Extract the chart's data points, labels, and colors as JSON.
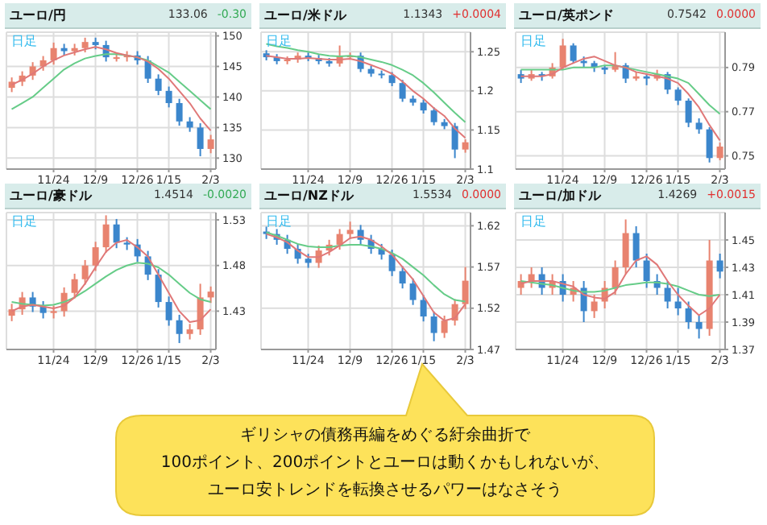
{
  "chart_data": [
    {
      "type": "candlestick",
      "title": "ユーロ/円",
      "annotations": [
        "133.06",
        "-0.30",
        "日足"
      ],
      "categories": [
        null,
        null,
        null,
        null,
        "11/24",
        null,
        null,
        null,
        "12/9",
        null,
        null,
        null,
        "12/26",
        null,
        null,
        "1/15",
        null,
        null,
        null,
        "2/3"
      ],
      "ylim": [
        128.2,
        150.6
      ],
      "yticks": [
        130,
        135,
        140,
        145,
        150
      ],
      "grid": true,
      "ohlc": [
        [
          141.5,
          143.2,
          140.8,
          142.5
        ],
        [
          142.5,
          144.2,
          141.8,
          143.5
        ],
        [
          143.5,
          145.7,
          142.8,
          145
        ],
        [
          145,
          146.7,
          144.3,
          146
        ],
        [
          146,
          148.9,
          145.3,
          148
        ],
        [
          148,
          148.7,
          146.8,
          147.5
        ],
        [
          147.5,
          148.7,
          146.8,
          148
        ],
        [
          148,
          149.7,
          147.3,
          149
        ],
        [
          149,
          149.7,
          147.8,
          148.5
        ],
        [
          148.5,
          149.2,
          145.8,
          146.5
        ],
        [
          146.5,
          147.2,
          145.8,
          146.5
        ],
        [
          146.5,
          147.5,
          145.8,
          146.8
        ],
        [
          146.8,
          147.5,
          145.3,
          146
        ],
        [
          146,
          146.7,
          142.3,
          143
        ],
        [
          143,
          143.7,
          140.3,
          141
        ],
        [
          141,
          141.7,
          138.3,
          139
        ],
        [
          139,
          139.7,
          135.3,
          136
        ],
        [
          136,
          136.7,
          134.3,
          135
        ],
        [
          135,
          135.7,
          130.3,
          131.5
        ],
        [
          131.5,
          133.8,
          130.8,
          133.06
        ]
      ],
      "series": [
        {
          "type": "line",
          "color": "#66cc88",
          "values": [
            138,
            139,
            140,
            141.5,
            143,
            144.5,
            145.5,
            146.3,
            146.7,
            147,
            147,
            146.8,
            146.5,
            146,
            145,
            144,
            142.5,
            141,
            139.5,
            138
          ]
        },
        {
          "type": "line",
          "color": "#e07878",
          "values": [
            142,
            142.8,
            143.8,
            145,
            146,
            146.8,
            147.3,
            147.8,
            148.2,
            147.8,
            147.2,
            146.8,
            146.5,
            145.8,
            144.6,
            143,
            141,
            139,
            136.5,
            134.5
          ]
        }
      ]
    },
    {
      "type": "candlestick",
      "title": "ユーロ/米ドル",
      "annotations": [
        "1.1343",
        "+0.0004",
        "日足"
      ],
      "categories": [
        null,
        null,
        null,
        null,
        "11/24",
        null,
        null,
        null,
        "12/9",
        null,
        null,
        null,
        "12/26",
        null,
        null,
        "1/15",
        null,
        null,
        null,
        "2/3"
      ],
      "ylim": [
        1.1,
        1.275
      ],
      "yticks": [
        1.1,
        1.15,
        1.2,
        1.25
      ],
      "grid": true,
      "ohlc": [
        [
          1.248,
          1.252,
          1.239,
          1.243
        ],
        [
          1.243,
          1.247,
          1.234,
          1.238
        ],
        [
          1.238,
          1.244,
          1.234,
          1.24
        ],
        [
          1.24,
          1.249,
          1.236,
          1.245
        ],
        [
          1.245,
          1.249,
          1.238,
          1.242
        ],
        [
          1.242,
          1.246,
          1.234,
          1.238
        ],
        [
          1.238,
          1.242,
          1.231,
          1.235
        ],
        [
          1.235,
          1.258,
          1.231,
          1.245
        ],
        [
          1.245,
          1.249,
          1.241,
          1.245
        ],
        [
          1.245,
          1.249,
          1.224,
          1.228
        ],
        [
          1.228,
          1.232,
          1.218,
          1.222
        ],
        [
          1.222,
          1.226,
          1.216,
          1.22
        ],
        [
          1.22,
          1.224,
          1.206,
          1.21
        ],
        [
          1.21,
          1.214,
          1.186,
          1.19
        ],
        [
          1.19,
          1.194,
          1.181,
          1.185
        ],
        [
          1.185,
          1.189,
          1.171,
          1.175
        ],
        [
          1.175,
          1.179,
          1.156,
          1.16
        ],
        [
          1.16,
          1.164,
          1.151,
          1.155
        ],
        [
          1.155,
          1.159,
          1.114,
          1.125
        ],
        [
          1.125,
          1.138,
          1.121,
          1.1343
        ]
      ],
      "series": [
        {
          "type": "line",
          "color": "#66cc88",
          "values": [
            1.26,
            1.257,
            1.255,
            1.252,
            1.25,
            1.247,
            1.245,
            1.244,
            1.245,
            1.243,
            1.24,
            1.237,
            1.233,
            1.227,
            1.22,
            1.21,
            1.198,
            1.185,
            1.172,
            1.16
          ]
        },
        {
          "type": "line",
          "color": "#e07878",
          "values": [
            1.245,
            1.243,
            1.241,
            1.241,
            1.242,
            1.241,
            1.24,
            1.24,
            1.241,
            1.238,
            1.233,
            1.228,
            1.222,
            1.212,
            1.2,
            1.19,
            1.178,
            1.168,
            1.152,
            1.14
          ]
        }
      ]
    },
    {
      "type": "candlestick",
      "title": "ユーロ/英ポンド",
      "annotations": [
        "0.7542",
        "0.0000",
        "日足"
      ],
      "categories": [
        null,
        null,
        null,
        null,
        "11/24",
        null,
        null,
        null,
        "12/9",
        null,
        null,
        null,
        "12/26",
        null,
        null,
        "1/15",
        null,
        null,
        null,
        "2/3"
      ],
      "ylim": [
        0.744,
        0.806
      ],
      "yticks": [
        0.75,
        0.77,
        0.79
      ],
      "grid": true,
      "ohlc": [
        [
          0.787,
          0.789,
          0.783,
          0.785
        ],
        [
          0.785,
          0.789,
          0.784,
          0.787
        ],
        [
          0.787,
          0.788,
          0.784,
          0.786
        ],
        [
          0.786,
          0.792,
          0.785,
          0.79
        ],
        [
          0.79,
          0.803,
          0.789,
          0.8
        ],
        [
          0.8,
          0.801,
          0.792,
          0.793
        ],
        [
          0.793,
          0.795,
          0.79,
          0.792
        ],
        [
          0.792,
          0.793,
          0.788,
          0.79
        ],
        [
          0.79,
          0.791,
          0.787,
          0.789
        ],
        [
          0.789,
          0.797,
          0.788,
          0.791
        ],
        [
          0.791,
          0.792,
          0.783,
          0.785
        ],
        [
          0.785,
          0.788,
          0.784,
          0.786
        ],
        [
          0.786,
          0.787,
          0.782,
          0.785
        ],
        [
          0.785,
          0.789,
          0.784,
          0.787
        ],
        [
          0.787,
          0.788,
          0.778,
          0.78
        ],
        [
          0.78,
          0.781,
          0.773,
          0.775
        ],
        [
          0.775,
          0.776,
          0.763,
          0.765
        ],
        [
          0.765,
          0.767,
          0.76,
          0.762
        ],
        [
          0.762,
          0.763,
          0.747,
          0.749
        ],
        [
          0.749,
          0.756,
          0.748,
          0.7542
        ]
      ],
      "series": [
        {
          "type": "line",
          "color": "#66cc88",
          "values": [
            0.789,
            0.789,
            0.789,
            0.789,
            0.789,
            0.79,
            0.79,
            0.79,
            0.791,
            0.791,
            0.79,
            0.789,
            0.788,
            0.787,
            0.786,
            0.785,
            0.783,
            0.778,
            0.773,
            0.769
          ]
        },
        {
          "type": "line",
          "color": "#e07878",
          "values": [
            0.786,
            0.786,
            0.786,
            0.787,
            0.79,
            0.792,
            0.794,
            0.795,
            0.793,
            0.791,
            0.79,
            0.788,
            0.787,
            0.786,
            0.785,
            0.783,
            0.778,
            0.772,
            0.764,
            0.757
          ]
        }
      ]
    },
    {
      "type": "candlestick",
      "title": "ユーロ/豪ドル",
      "annotations": [
        "1.4514",
        "-0.0020",
        "日足"
      ],
      "categories": [
        null,
        null,
        null,
        null,
        "11/24",
        null,
        null,
        null,
        "12/9",
        null,
        null,
        null,
        "12/26",
        null,
        null,
        "1/15",
        null,
        null,
        null,
        "2/3"
      ],
      "ylim": [
        1.388,
        1.538
      ],
      "yticks": [
        1.43,
        1.48,
        1.53
      ],
      "grid": true,
      "ohlc": [
        [
          1.425,
          1.438,
          1.419,
          1.432
        ],
        [
          1.432,
          1.451,
          1.426,
          1.445
        ],
        [
          1.445,
          1.451,
          1.429,
          1.435
        ],
        [
          1.435,
          1.441,
          1.422,
          1.428
        ],
        [
          1.428,
          1.436,
          1.422,
          1.43
        ],
        [
          1.43,
          1.456,
          1.424,
          1.45
        ],
        [
          1.45,
          1.471,
          1.444,
          1.465
        ],
        [
          1.465,
          1.486,
          1.459,
          1.48
        ],
        [
          1.48,
          1.506,
          1.474,
          1.5
        ],
        [
          1.5,
          1.535,
          1.494,
          1.525
        ],
        [
          1.525,
          1.531,
          1.499,
          1.505
        ],
        [
          1.505,
          1.511,
          1.497,
          1.503
        ],
        [
          1.503,
          1.509,
          1.484,
          1.49
        ],
        [
          1.49,
          1.496,
          1.464,
          1.47
        ],
        [
          1.47,
          1.476,
          1.434,
          1.44
        ],
        [
          1.44,
          1.446,
          1.414,
          1.42
        ],
        [
          1.42,
          1.426,
          1.395,
          1.405
        ],
        [
          1.405,
          1.416,
          1.399,
          1.41
        ],
        [
          1.41,
          1.46,
          1.404,
          1.445
        ],
        [
          1.445,
          1.457,
          1.439,
          1.4514
        ]
      ],
      "series": [
        {
          "type": "line",
          "color": "#66cc88",
          "values": [
            1.44,
            1.438,
            1.437,
            1.436,
            1.437,
            1.44,
            1.445,
            1.452,
            1.46,
            1.468,
            1.475,
            1.48,
            1.483,
            1.482,
            1.478,
            1.47,
            1.46,
            1.45,
            1.443,
            1.44
          ]
        },
        {
          "type": "line",
          "color": "#e07878",
          "values": [
            1.43,
            1.435,
            1.437,
            1.435,
            1.433,
            1.436,
            1.445,
            1.46,
            1.478,
            1.495,
            1.505,
            1.508,
            1.5,
            1.49,
            1.47,
            1.45,
            1.43,
            1.418,
            1.42,
            1.432
          ]
        }
      ]
    },
    {
      "type": "candlestick",
      "title": "ユーロ/NZドル",
      "annotations": [
        "1.5534",
        "0.0000",
        "日足"
      ],
      "categories": [
        null,
        null,
        null,
        null,
        "11/24",
        null,
        null,
        null,
        "12/9",
        null,
        null,
        null,
        "12/26",
        null,
        null,
        "1/15",
        null,
        null,
        null,
        "2/3"
      ],
      "ylim": [
        1.47,
        1.636
      ],
      "yticks": [
        1.47,
        1.52,
        1.57,
        1.62
      ],
      "grid": true,
      "ohlc": [
        [
          1.613,
          1.619,
          1.604,
          1.61
        ],
        [
          1.61,
          1.616,
          1.597,
          1.603
        ],
        [
          1.603,
          1.609,
          1.586,
          1.592
        ],
        [
          1.592,
          1.598,
          1.574,
          1.58
        ],
        [
          1.58,
          1.586,
          1.569,
          1.575
        ],
        [
          1.575,
          1.596,
          1.569,
          1.59
        ],
        [
          1.59,
          1.603,
          1.584,
          1.597
        ],
        [
          1.597,
          1.616,
          1.591,
          1.61
        ],
        [
          1.61,
          1.625,
          1.604,
          1.615
        ],
        [
          1.615,
          1.621,
          1.597,
          1.603
        ],
        [
          1.603,
          1.609,
          1.586,
          1.592
        ],
        [
          1.592,
          1.598,
          1.579,
          1.585
        ],
        [
          1.585,
          1.591,
          1.559,
          1.565
        ],
        [
          1.565,
          1.571,
          1.544,
          1.55
        ],
        [
          1.55,
          1.556,
          1.524,
          1.53
        ],
        [
          1.53,
          1.536,
          1.504,
          1.51
        ],
        [
          1.51,
          1.516,
          1.48,
          1.49
        ],
        [
          1.49,
          1.511,
          1.484,
          1.505
        ],
        [
          1.505,
          1.531,
          1.499,
          1.525
        ],
        [
          1.525,
          1.57,
          1.519,
          1.5534
        ]
      ],
      "series": [
        {
          "type": "line",
          "color": "#66cc88",
          "values": [
            1.612,
            1.608,
            1.603,
            1.598,
            1.595,
            1.594,
            1.594,
            1.596,
            1.597,
            1.597,
            1.595,
            1.592,
            1.587,
            1.58,
            1.57,
            1.56,
            1.548,
            1.537,
            1.53,
            1.528
          ]
        },
        {
          "type": "line",
          "color": "#e07878",
          "values": [
            1.61,
            1.606,
            1.6,
            1.59,
            1.582,
            1.582,
            1.588,
            1.596,
            1.605,
            1.607,
            1.603,
            1.595,
            1.585,
            1.57,
            1.555,
            1.535,
            1.515,
            1.505,
            1.508,
            1.525
          ]
        }
      ]
    },
    {
      "type": "candlestick",
      "title": "ユーロ/加ドル",
      "annotations": [
        "1.4269",
        "+0.0015",
        "日足"
      ],
      "categories": [
        null,
        null,
        null,
        null,
        "11/24",
        null,
        null,
        null,
        "12/9",
        null,
        null,
        null,
        "12/26",
        null,
        null,
        "1/15",
        null,
        null,
        null,
        "2/3"
      ],
      "ylim": [
        1.37,
        1.47
      ],
      "yticks": [
        1.37,
        1.39,
        1.41,
        1.43,
        1.45
      ],
      "grid": true,
      "ohlc": [
        [
          1.415,
          1.425,
          1.41,
          1.42
        ],
        [
          1.42,
          1.43,
          1.415,
          1.425
        ],
        [
          1.425,
          1.43,
          1.41,
          1.415
        ],
        [
          1.415,
          1.425,
          1.41,
          1.42
        ],
        [
          1.42,
          1.425,
          1.405,
          1.41
        ],
        [
          1.41,
          1.42,
          1.405,
          1.415
        ],
        [
          1.415,
          1.42,
          1.39,
          1.398
        ],
        [
          1.398,
          1.41,
          1.393,
          1.405
        ],
        [
          1.405,
          1.42,
          1.4,
          1.415
        ],
        [
          1.415,
          1.435,
          1.41,
          1.43
        ],
        [
          1.43,
          1.465,
          1.425,
          1.455
        ],
        [
          1.455,
          1.46,
          1.43,
          1.435
        ],
        [
          1.435,
          1.44,
          1.415,
          1.42
        ],
        [
          1.42,
          1.425,
          1.41,
          1.415
        ],
        [
          1.415,
          1.42,
          1.4,
          1.405
        ],
        [
          1.405,
          1.415,
          1.395,
          1.4
        ],
        [
          1.4,
          1.405,
          1.385,
          1.39
        ],
        [
          1.39,
          1.395,
          1.378,
          1.385
        ],
        [
          1.385,
          1.45,
          1.38,
          1.435
        ],
        [
          1.435,
          1.44,
          1.422,
          1.4269
        ]
      ],
      "series": [
        {
          "type": "line",
          "color": "#66cc88",
          "values": [
            1.42,
            1.419,
            1.418,
            1.417,
            1.415,
            1.413,
            1.412,
            1.412,
            1.413,
            1.415,
            1.417,
            1.418,
            1.419,
            1.419,
            1.418,
            1.416,
            1.413,
            1.41,
            1.409,
            1.41
          ]
        },
        {
          "type": "line",
          "color": "#e07878",
          "values": [
            1.418,
            1.42,
            1.42,
            1.42,
            1.418,
            1.416,
            1.41,
            1.408,
            1.407,
            1.412,
            1.425,
            1.435,
            1.438,
            1.432,
            1.42,
            1.41,
            1.402,
            1.395,
            1.4,
            1.41
          ]
        }
      ]
    },
    {
      "type": "other",
      "annotations": [
        "ギリシャの債務再編をめぐる紆余曲折で",
        "100ポイント、200ポイントとユーロは動くかもしれないが、",
        "ユーロ安トレンドを転換させるパワーはなさそう"
      ]
    }
  ]
}
